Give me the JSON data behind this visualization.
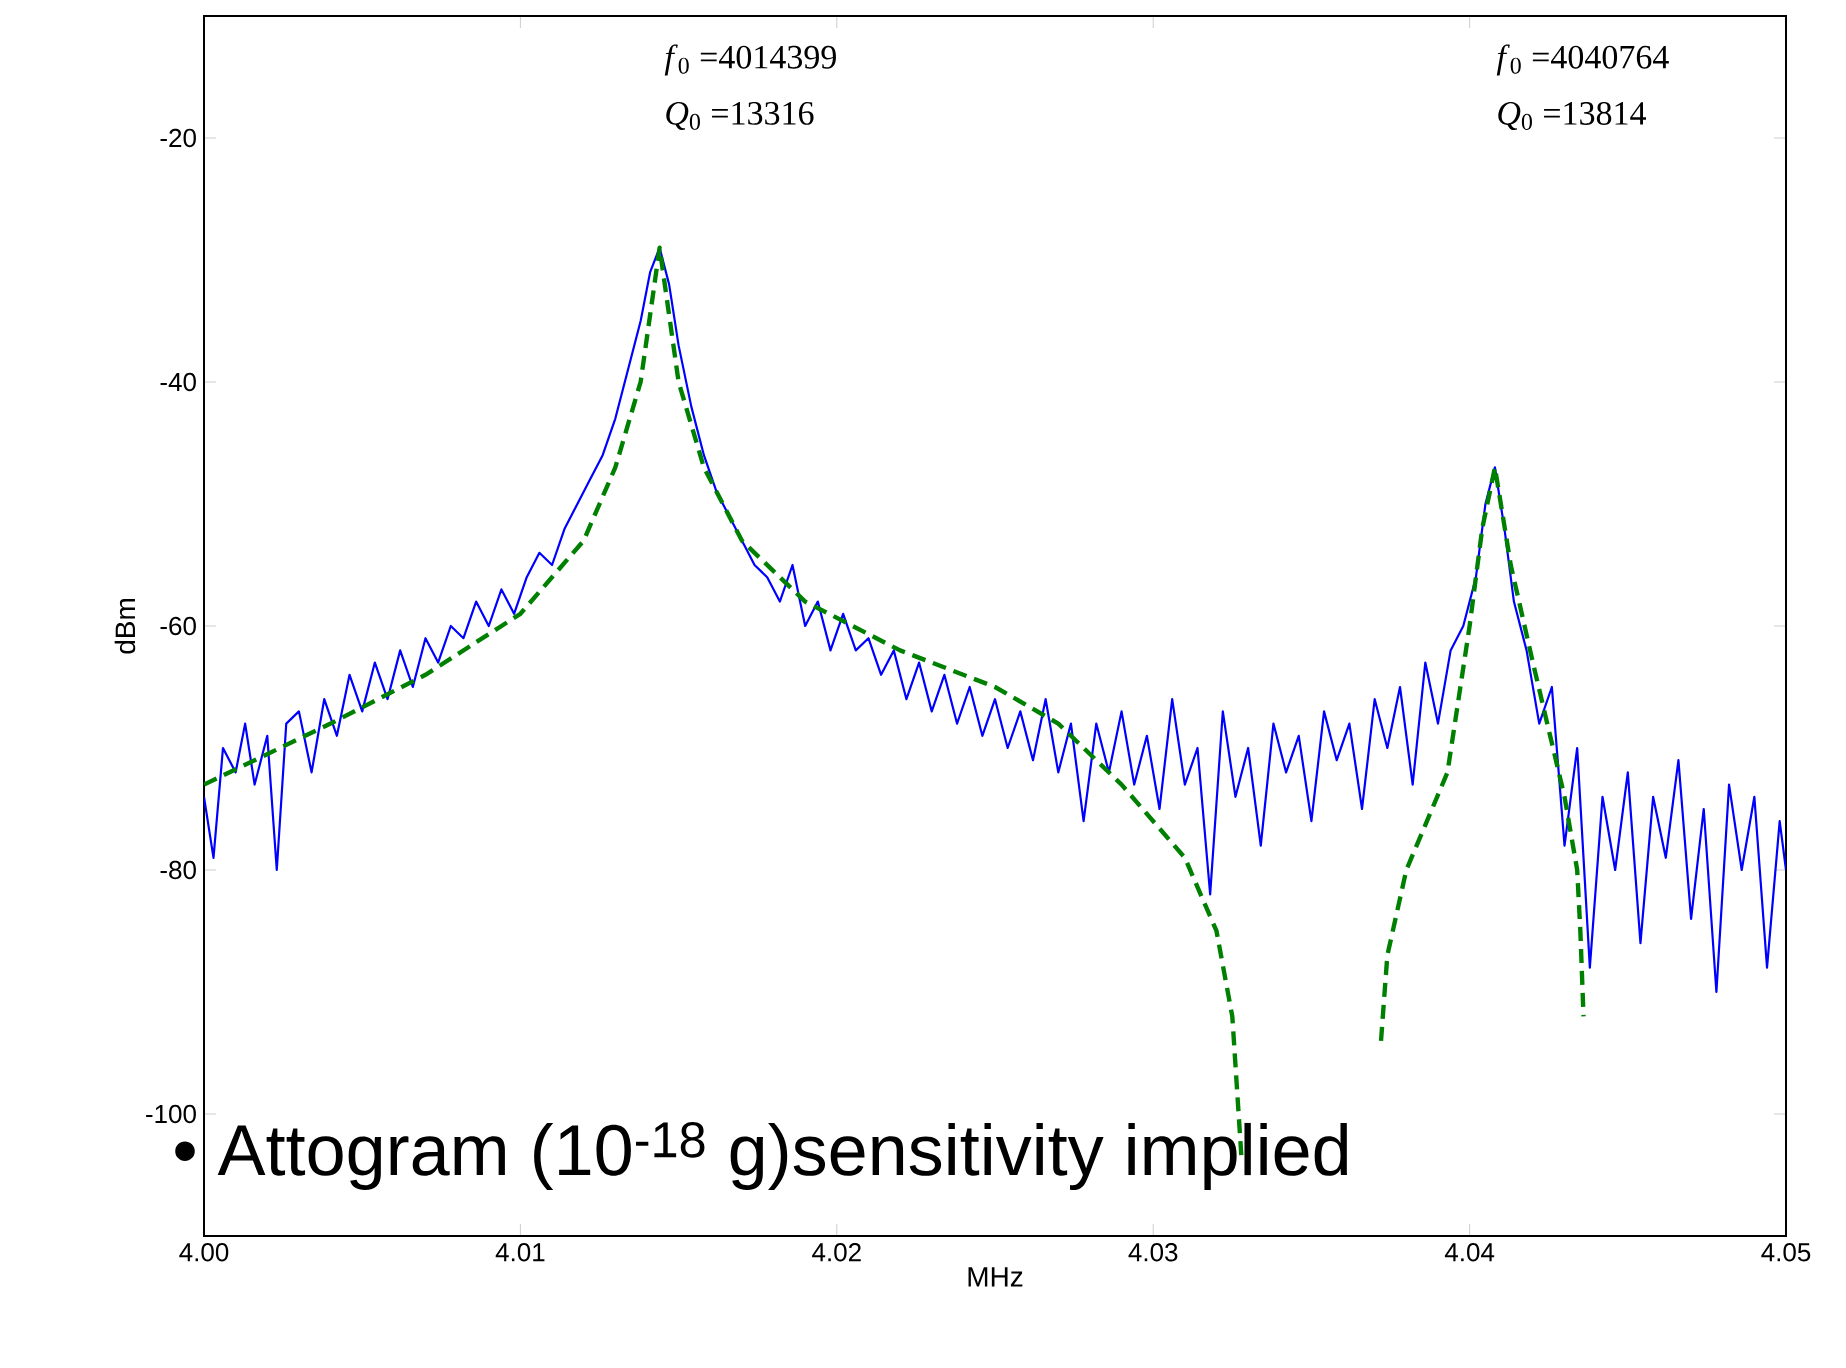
{
  "chart_data": {
    "type": "line",
    "xlabel": "MHz",
    "ylabel": "dBm",
    "xlim": [
      4.0,
      4.05
    ],
    "ylim": [
      -110,
      -10
    ],
    "xticks": [
      {
        "value": 4.0,
        "label": "4.00"
      },
      {
        "value": 4.01,
        "label": "4.01"
      },
      {
        "value": 4.02,
        "label": "4.02"
      },
      {
        "value": 4.03,
        "label": "4.03"
      },
      {
        "value": 4.04,
        "label": "4.04"
      },
      {
        "value": 4.05,
        "label": "4.05"
      }
    ],
    "yticks": [
      -100,
      -80,
      -60,
      -40,
      -20
    ],
    "annotations": [
      "*f*$_{0}$ =4014399",
      "*Q*$_{0}$ =13316",
      "*f*$_{0}$ =4040764",
      "*Q*$_{0}$ =13814",
      "• Attogram (10$^{-18}$ g)sensitivity implied"
    ],
    "series": [
      {
        "color": "#0000ff",
        "line_style": "solid",
        "x": [
          4.0,
          4.0003,
          4.0006,
          4.001,
          4.0013,
          4.0016,
          4.002,
          4.0023,
          4.0026,
          4.003,
          4.0034,
          4.0038,
          4.0042,
          4.0046,
          4.005,
          4.0054,
          4.0058,
          4.0062,
          4.0066,
          4.007,
          4.0074,
          4.0078,
          4.0082,
          4.0086,
          4.009,
          4.0094,
          4.0098,
          4.0102,
          4.0106,
          4.011,
          4.0114,
          4.0118,
          4.0122,
          4.0126,
          4.013,
          4.0134,
          4.0138,
          4.0141,
          4.0144,
          4.0147,
          4.015,
          4.0154,
          4.0158,
          4.0162,
          4.0166,
          4.017,
          4.0174,
          4.0178,
          4.0182,
          4.0186,
          4.019,
          4.0194,
          4.0198,
          4.0202,
          4.0206,
          4.021,
          4.0214,
          4.0218,
          4.0222,
          4.0226,
          4.023,
          4.0234,
          4.0238,
          4.0242,
          4.0246,
          4.025,
          4.0254,
          4.0258,
          4.0262,
          4.0266,
          4.027,
          4.0274,
          4.0278,
          4.0282,
          4.0286,
          4.029,
          4.0294,
          4.0298,
          4.0302,
          4.0306,
          4.031,
          4.0314,
          4.0318,
          4.0322,
          4.0326,
          4.033,
          4.0334,
          4.0338,
          4.0342,
          4.0346,
          4.035,
          4.0354,
          4.0358,
          4.0362,
          4.0366,
          4.037,
          4.0374,
          4.0378,
          4.0382,
          4.0386,
          4.039,
          4.0394,
          4.0398,
          4.0402,
          4.0405,
          4.0408,
          4.0411,
          4.0414,
          4.0418,
          4.0422,
          4.0426,
          4.043,
          4.0434,
          4.0438,
          4.0442,
          4.0446,
          4.045,
          4.0454,
          4.0458,
          4.0462,
          4.0466,
          4.047,
          4.0474,
          4.0478,
          4.0482,
          4.0486,
          4.049,
          4.0494,
          4.0498,
          4.05
        ],
        "values": [
          -74,
          -79,
          -70,
          -72,
          -68,
          -73,
          -69,
          -80,
          -68,
          -67,
          -72,
          -66,
          -69,
          -64,
          -67,
          -63,
          -66,
          -62,
          -65,
          -61,
          -63,
          -60,
          -61,
          -58,
          -60,
          -57,
          -59,
          -56,
          -54,
          -55,
          -52,
          -50,
          -48,
          -46,
          -43,
          -39,
          -35,
          -31,
          -29,
          -32,
          -37,
          -42,
          -46,
          -49,
          -51,
          -53,
          -55,
          -56,
          -58,
          -55,
          -60,
          -58,
          -62,
          -59,
          -62,
          -61,
          -64,
          -62,
          -66,
          -63,
          -67,
          -64,
          -68,
          -65,
          -69,
          -66,
          -70,
          -67,
          -71,
          -66,
          -72,
          -68,
          -76,
          -68,
          -72,
          -67,
          -73,
          -69,
          -75,
          -66,
          -73,
          -70,
          -82,
          -67,
          -74,
          -70,
          -78,
          -68,
          -72,
          -69,
          -76,
          -67,
          -71,
          -68,
          -75,
          -66,
          -70,
          -65,
          -73,
          -63,
          -68,
          -62,
          -60,
          -56,
          -50,
          -47,
          -52,
          -58,
          -62,
          -68,
          -65,
          -78,
          -70,
          -88,
          -74,
          -80,
          -72,
          -86,
          -74,
          -79,
          -71,
          -84,
          -75,
          -90,
          -73,
          -80,
          -74,
          -88,
          -76,
          -80
        ]
      },
      {
        "color": "#008000",
        "line_style": "dashed",
        "x": [
          4.0,
          4.004,
          4.007,
          4.01,
          4.012,
          4.013,
          4.0138,
          4.0144,
          4.015,
          4.0158,
          4.017,
          4.019,
          4.022,
          4.025,
          4.027,
          4.029,
          4.03,
          4.031,
          4.032,
          4.0325,
          4.0328,
          4.035,
          4.0372,
          4.0374,
          4.038,
          4.0393,
          4.04,
          4.0404,
          4.0408,
          4.0413,
          4.042,
          4.043,
          4.0434,
          4.0435,
          4.0436
        ],
        "values": [
          -73,
          -68,
          -64,
          -59,
          -53,
          -47,
          -40,
          -29,
          -40,
          -47,
          -53,
          -58,
          -62,
          -65,
          -68,
          -73,
          -76,
          -79,
          -85,
          -92,
          -104,
          null,
          -94,
          -87,
          -80,
          -72,
          -60,
          -52,
          -47,
          -55,
          -63,
          -74,
          -80,
          -85,
          -92
        ]
      }
    ]
  }
}
